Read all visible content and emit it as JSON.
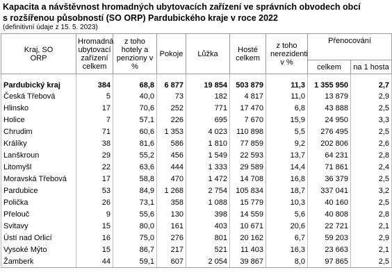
{
  "header": {
    "title": [
      "Kapacita a návštěvnost hromadných ubytovacích zařízení ve správních obvodech obcí",
      "s rozšířenou působností (SO ORP) Pardubického kraje v roce 2022"
    ],
    "subtitle": "(definitivní údaje z 15. 5. 2023)"
  },
  "table": {
    "columns": [
      "Kraj, SO ORP",
      "Hromadná ubytovací zařízení celkem",
      "z toho hotely a penziony v %",
      "Pokoje",
      "Lůžka",
      "Hosté celkem",
      "z toho nerezidenti v %",
      "Přenocování"
    ],
    "subcolumns": [
      "celkem",
      "na 1 hosta"
    ],
    "rows": [
      [
        "Pardubický kraj",
        "384",
        "68,8",
        "6 877",
        "19 854",
        "503 879",
        "11,3",
        "1 355 950",
        "2,7"
      ],
      [
        "Česká Třebová",
        "5",
        "40,0",
        "73",
        "182",
        "4 817",
        "11,0",
        "13 879",
        "2,9"
      ],
      [
        "Hlinsko",
        "17",
        "70,6",
        "252",
        "771",
        "17 470",
        "6,8",
        "43 888",
        "2,5"
      ],
      [
        "Holice",
        "7",
        "57,1",
        "226",
        "695",
        "7 670",
        "15,9",
        "24 950",
        "3,3"
      ],
      [
        "Chrudim",
        "71",
        "60,6",
        "1 353",
        "4 023",
        "110 898",
        "5,5",
        "276 495",
        "2,5"
      ],
      [
        "Králíky",
        "38",
        "81,6",
        "586",
        "1 810",
        "77 859",
        "9,2",
        "202 806",
        "2,6"
      ],
      [
        "Lanškroun",
        "29",
        "55,2",
        "456",
        "1 549",
        "22 593",
        "13,7",
        "64 231",
        "2,8"
      ],
      [
        "Litomyšl",
        "22",
        "63,6",
        "444",
        "1 333",
        "29 589",
        "14,4",
        "71 861",
        "2,4"
      ],
      [
        "Moravská Třebová",
        "17",
        "58,8",
        "470",
        "1 472",
        "14 708",
        "16,8",
        "36 379",
        "2,5"
      ],
      [
        "Pardubice",
        "53",
        "84,9",
        "1 268",
        "2 754",
        "105 834",
        "18,7",
        "337 041",
        "3,2"
      ],
      [
        "Polička",
        "26",
        "73,1",
        "358",
        "1 088",
        "15 779",
        "10,3",
        "40 160",
        "2,5"
      ],
      [
        "Přelouč",
        "9",
        "55,6",
        "130",
        "398",
        "14 559",
        "5,6",
        "40 808",
        "2,8"
      ],
      [
        "Svitavy",
        "15",
        "80,0",
        "161",
        "403",
        "10 671",
        "20,6",
        "22 721",
        "2,1"
      ],
      [
        "Ústí nad Orlicí",
        "16",
        "75,0",
        "276",
        "801",
        "20 162",
        "6,7",
        "59 203",
        "2,9"
      ],
      [
        "Vysoké Mýto",
        "15",
        "86,7",
        "217",
        "521",
        "11 403",
        "16,3",
        "23 663",
        "2,1"
      ],
      [
        "Žamberk",
        "44",
        "59,1",
        "607",
        "2 054",
        "39 867",
        "8,0",
        "97 865",
        "2,5"
      ]
    ]
  }
}
